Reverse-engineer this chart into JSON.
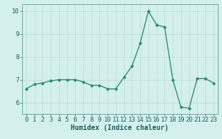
{
  "x": [
    0,
    1,
    2,
    3,
    4,
    5,
    6,
    7,
    8,
    9,
    10,
    11,
    12,
    13,
    14,
    15,
    16,
    17,
    18,
    19,
    20,
    21,
    22,
    23
  ],
  "y": [
    6.6,
    6.8,
    6.85,
    6.95,
    7.0,
    7.0,
    7.0,
    6.9,
    6.75,
    6.75,
    6.6,
    6.6,
    7.1,
    7.6,
    8.6,
    10.0,
    9.4,
    9.3,
    7.0,
    5.8,
    5.75,
    7.05,
    7.05,
    6.85
  ],
  "line_color": "#2e8b72",
  "marker": "D",
  "markersize": 1.8,
  "linewidth": 1.0,
  "xlabel": "Humidex (Indice chaleur)",
  "xlim": [
    -0.5,
    23.5
  ],
  "ylim": [
    5.5,
    10.3
  ],
  "yticks": [
    6,
    7,
    8,
    9,
    10
  ],
  "xticks": [
    0,
    1,
    2,
    3,
    4,
    5,
    6,
    7,
    8,
    9,
    10,
    11,
    12,
    13,
    14,
    15,
    16,
    17,
    18,
    19,
    20,
    21,
    22,
    23
  ],
  "bg_color": "#d4f0ec",
  "grid_color": "#c0dcd8",
  "xlabel_fontsize": 7,
  "tick_fontsize": 6.5
}
